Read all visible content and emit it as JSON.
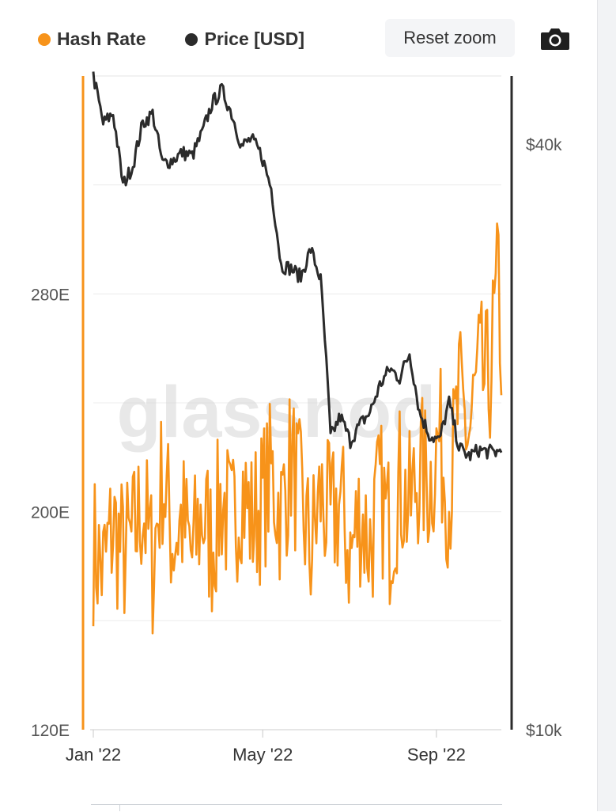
{
  "legend": {
    "items": [
      {
        "label": "Hash Rate",
        "color": "#f7931a"
      },
      {
        "label": "Price [USD]",
        "color": "#2b2b2b"
      }
    ]
  },
  "toolbar": {
    "reset_zoom_label": "Reset zoom",
    "export_icon": "camera-icon"
  },
  "watermark": "glassnode",
  "chart_data": {
    "type": "line",
    "title": "",
    "x_ticks": [
      "Jan '22",
      "May '22",
      "Sep '22"
    ],
    "x_tick_dates": [
      "2022-01-01",
      "2022-05-01",
      "2022-09-01"
    ],
    "x_range": [
      "2022-01-01",
      "2022-10-17"
    ],
    "grid": true,
    "legend_position": "top-left",
    "axes": {
      "left": {
        "ticks": [
          "120E",
          "200E",
          "280E"
        ],
        "tick_values": [
          120,
          200,
          280
        ],
        "range": [
          120,
          360
        ],
        "color": "#f7931a"
      },
      "right": {
        "ticks": [
          "$10k",
          "$40k"
        ],
        "tick_values": [
          10000,
          40000
        ],
        "range": [
          10000,
          47000
        ],
        "scale": "log",
        "color": "#2b2b2b"
      }
    },
    "series": [
      {
        "name": "Hash Rate",
        "axis": "left",
        "color": "#f7931a",
        "x": [
          "2022-01-01",
          "2022-01-08",
          "2022-01-15",
          "2022-01-22",
          "2022-01-29",
          "2022-02-05",
          "2022-02-12",
          "2022-02-19",
          "2022-02-26",
          "2022-03-05",
          "2022-03-12",
          "2022-03-19",
          "2022-03-26",
          "2022-04-02",
          "2022-04-09",
          "2022-04-16",
          "2022-04-23",
          "2022-04-30",
          "2022-05-07",
          "2022-05-14",
          "2022-05-21",
          "2022-05-28",
          "2022-06-04",
          "2022-06-11",
          "2022-06-18",
          "2022-06-25",
          "2022-07-02",
          "2022-07-09",
          "2022-07-16",
          "2022-07-23",
          "2022-07-30",
          "2022-08-06",
          "2022-08-13",
          "2022-08-20",
          "2022-08-27",
          "2022-09-03",
          "2022-09-10",
          "2022-09-17",
          "2022-09-24",
          "2022-10-01",
          "2022-10-08",
          "2022-10-15",
          "2022-10-17"
        ],
        "values": [
          187,
          178,
          195,
          184,
          189,
          203,
          181,
          214,
          190,
          197,
          183,
          200,
          188,
          205,
          193,
          210,
          196,
          203,
          214,
          199,
          220,
          203,
          185,
          206,
          195,
          204,
          183,
          200,
          188,
          207,
          193,
          211,
          201,
          216,
          210,
          227,
          205,
          241,
          228,
          250,
          246,
          285,
          258
        ]
      },
      {
        "name": "Price [USD]",
        "axis": "right",
        "color": "#2b2b2b",
        "x": [
          "2022-01-01",
          "2022-01-08",
          "2022-01-15",
          "2022-01-22",
          "2022-01-29",
          "2022-02-05",
          "2022-02-12",
          "2022-02-19",
          "2022-02-26",
          "2022-03-05",
          "2022-03-12",
          "2022-03-19",
          "2022-03-26",
          "2022-04-02",
          "2022-04-09",
          "2022-04-16",
          "2022-04-23",
          "2022-04-30",
          "2022-05-07",
          "2022-05-14",
          "2022-05-21",
          "2022-05-28",
          "2022-06-04",
          "2022-06-11",
          "2022-06-18",
          "2022-06-25",
          "2022-07-02",
          "2022-07-09",
          "2022-07-16",
          "2022-07-23",
          "2022-07-30",
          "2022-08-06",
          "2022-08-13",
          "2022-08-20",
          "2022-08-27",
          "2022-09-03",
          "2022-09-10",
          "2022-09-17",
          "2022-09-24",
          "2022-10-01",
          "2022-10-08",
          "2022-10-15",
          "2022-10-17"
        ],
        "values": [
          47000,
          42000,
          43000,
          36300,
          38000,
          42000,
          43000,
          38200,
          38500,
          39200,
          38900,
          41000,
          44000,
          45500,
          43000,
          39800,
          40500,
          39000,
          36000,
          30000,
          29800,
          29200,
          31200,
          29000,
          20000,
          21000,
          19800,
          20600,
          21200,
          22600,
          23500,
          23000,
          24400,
          21200,
          20100,
          19800,
          21700,
          19500,
          19100,
          19400,
          19300,
          19300,
          19600
        ]
      }
    ]
  }
}
